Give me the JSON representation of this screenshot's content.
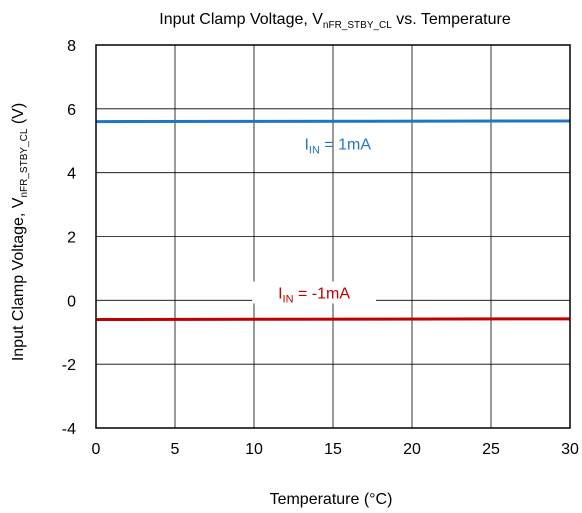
{
  "chart_data": {
    "type": "line",
    "title": {
      "prefix": "Input Clamp Voltage, V",
      "sub": "nFR_STBY_CL",
      "suffix": " vs. Temperature"
    },
    "xlabel": "Temperature (°C)",
    "ylabel": {
      "prefix": "Input Clamp Voltage, V",
      "sub": "nFR_STBY_CL",
      "suffix": " (V)"
    },
    "xlim": [
      0,
      30
    ],
    "ylim": [
      -4,
      8
    ],
    "xticks": [
      0,
      5,
      10,
      15,
      20,
      25,
      30
    ],
    "yticks": [
      -4,
      -2,
      0,
      2,
      4,
      6,
      8
    ],
    "grid": true,
    "series": [
      {
        "label": {
          "prefix": "I",
          "sub": "IN",
          "suffix": " = 1mA"
        },
        "color": "#1f77c4",
        "x": [
          0,
          30
        ],
        "y": [
          5.6,
          5.62
        ]
      },
      {
        "label": {
          "prefix": "I",
          "sub": "IN",
          "suffix": " = -1mA"
        },
        "color": "#c00000",
        "x": [
          0,
          30
        ],
        "y": [
          -0.6,
          -0.58
        ]
      }
    ]
  }
}
